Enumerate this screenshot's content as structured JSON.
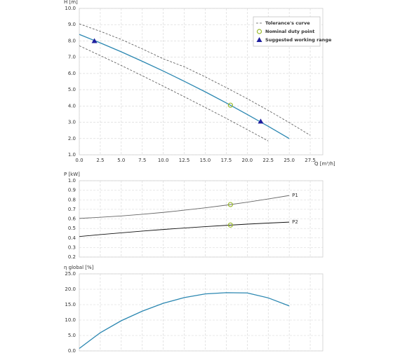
{
  "chart_data": [
    {
      "type": "line",
      "y_label": "H [m]",
      "x_label": "Q [m³/h]",
      "xlim": [
        0,
        29
      ],
      "xticks": [
        {
          "value": 0,
          "label": "0.0"
        },
        2.5,
        {
          "value": 5,
          "label": "5.0"
        },
        7.5,
        {
          "value": 10,
          "label": "10.0"
        },
        12.5,
        {
          "value": 15,
          "label": "15.0"
        },
        17.5,
        {
          "value": 20,
          "label": "20.0"
        },
        22.5,
        {
          "value": 25,
          "label": "25.0"
        },
        27.5
      ],
      "ylim": [
        1,
        10
      ],
      "yticks": [
        {
          "value": 1,
          "label": "1.0"
        },
        {
          "value": 2,
          "label": "2.0"
        },
        {
          "value": 3,
          "label": "3.0"
        },
        {
          "value": 4,
          "label": "4.0"
        },
        {
          "value": 5,
          "label": "5.0"
        },
        {
          "value": 6,
          "label": "6.0"
        },
        {
          "value": 7,
          "label": "7.0"
        },
        {
          "value": 8,
          "label": "8.0"
        },
        {
          "value": 9,
          "label": "9.0"
        },
        {
          "value": 10,
          "label": "10.0"
        }
      ],
      "grid": true,
      "legend": "upper right",
      "curve": {
        "color": "#2b87b1",
        "x": [
          0,
          2.5,
          5,
          7.5,
          10,
          12.5,
          15,
          17.5,
          20,
          22.5,
          25
        ],
        "values": [
          8.4,
          7.88,
          7.33,
          6.75,
          6.15,
          5.52,
          4.87,
          4.19,
          3.48,
          2.75,
          2.0
        ]
      },
      "tolerance": {
        "name": "Tolerance's curve",
        "color": "#555555",
        "upper": {
          "x": [
            0,
            2.5,
            5,
            7.5,
            10,
            12.5,
            15,
            17.5,
            20,
            22.5,
            25,
            27.5
          ],
          "values": [
            9.05,
            8.59,
            8.09,
            7.51,
            6.9,
            6.41,
            5.79,
            5.13,
            4.45,
            3.73,
            2.98,
            2.2
          ]
        },
        "lower": {
          "x": [
            0,
            2.5,
            5,
            7.5,
            10,
            12.5,
            15,
            17.5,
            20,
            22.5
          ],
          "values": [
            7.7,
            7.1,
            6.49,
            5.86,
            5.22,
            4.57,
            3.91,
            3.24,
            2.55,
            1.85
          ]
        }
      },
      "duty_point": {
        "name": "Nominal duty point",
        "color": "#9aba2e",
        "x": [
          18
        ],
        "y": [
          4.05
        ]
      },
      "working_range": {
        "name": "Suggested working range",
        "color": "#1f1f9e",
        "x": [
          1.8,
          21.6
        ],
        "y": [
          8.0,
          3.05
        ]
      }
    },
    {
      "type": "line",
      "y_label": "P [kW]",
      "ylim": [
        0.2,
        1.0
      ],
      "yticks": [
        0.2,
        0.3,
        0.4,
        0.5,
        0.6,
        0.7,
        0.8,
        0.9,
        {
          "value": 1.0,
          "label": "1.0"
        }
      ],
      "grid": true,
      "x": [
        0,
        2.5,
        5,
        7.5,
        10,
        12.5,
        15,
        17.5,
        20,
        22.5,
        25
      ],
      "series": [
        {
          "name": "P1",
          "color": "#666666",
          "values": [
            0.605,
            0.617,
            0.631,
            0.648,
            0.668,
            0.691,
            0.716,
            0.744,
            0.775,
            0.809,
            0.845
          ]
        },
        {
          "name": "P2",
          "color": "#111111",
          "values": [
            0.415,
            0.435,
            0.454,
            0.472,
            0.489,
            0.504,
            0.519,
            0.532,
            0.545,
            0.556,
            0.566
          ]
        }
      ],
      "duty_points": {
        "color": "#9aba2e",
        "x": [
          18,
          18
        ],
        "y": [
          0.75,
          0.535
        ]
      }
    },
    {
      "type": "line",
      "y_label": "η global [%]",
      "ylim": [
        0,
        25
      ],
      "yticks": [
        {
          "value": 0,
          "label": "0.0"
        },
        {
          "value": 5,
          "label": "5.0"
        },
        {
          "value": 10,
          "label": "10.0"
        },
        {
          "value": 15,
          "label": "15.0"
        },
        {
          "value": 20,
          "label": "20.0"
        },
        {
          "value": 25,
          "label": "25.0"
        }
      ],
      "grid": true,
      "x": [
        0,
        2.5,
        5,
        7.5,
        10,
        12.5,
        15,
        17.5,
        20,
        22.5,
        25
      ],
      "series": [
        {
          "color": "#2b87b1",
          "values": [
            0.8,
            5.9,
            9.8,
            12.9,
            15.45,
            17.3,
            18.5,
            18.9,
            18.8,
            17.2,
            14.6
          ]
        }
      ]
    }
  ]
}
